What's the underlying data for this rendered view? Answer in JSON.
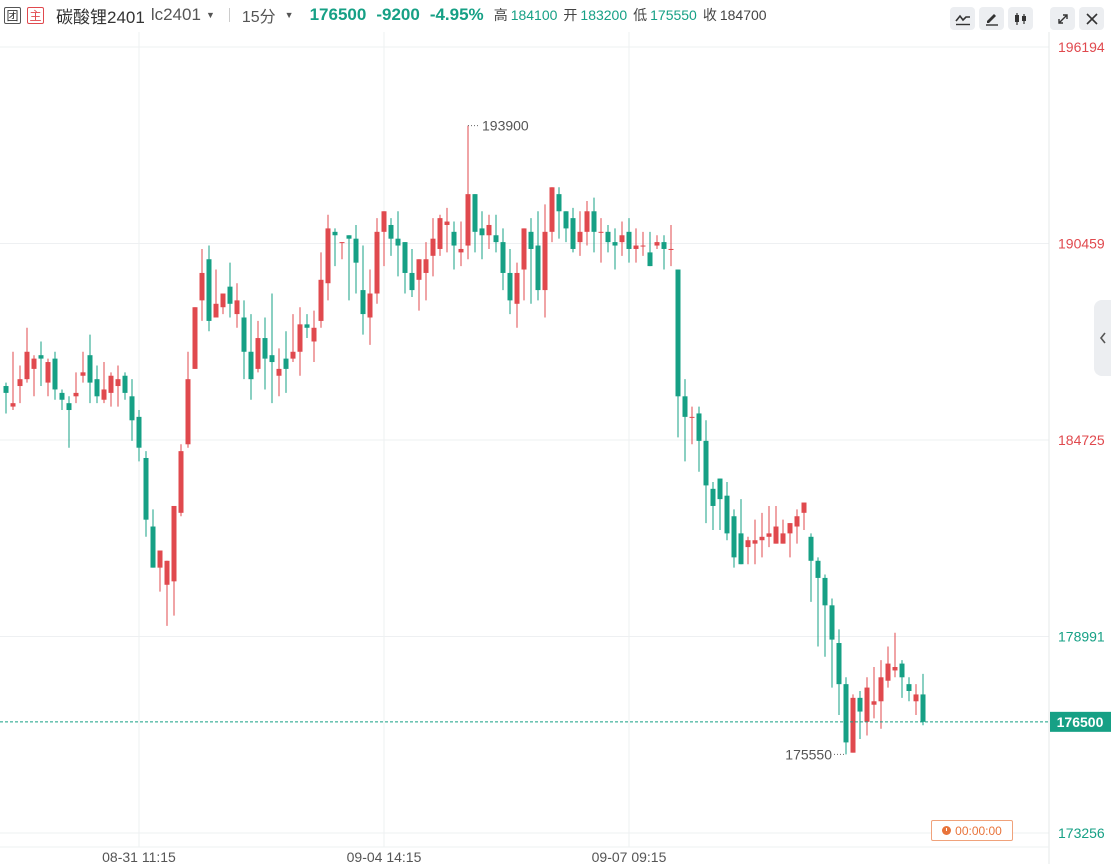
{
  "header": {
    "tag1": "团",
    "tag2": "主",
    "name": "碳酸锂2401",
    "code": "lc2401",
    "period": "15分",
    "price": "176500",
    "change": "-9200",
    "change_pct": "-4.95%",
    "high_label": "高",
    "high_value": "184100",
    "open_label": "开",
    "open_value": "183200",
    "low_label": "低",
    "low_value": "175550",
    "close_label": "收",
    "close_value": "184700"
  },
  "toolbar": {
    "icons": [
      "line-chart-icon",
      "pen-icon",
      "candlestick-icon",
      "expand-icon",
      "close-icon"
    ]
  },
  "timer": {
    "text": "00:00:00"
  },
  "colors": {
    "up": "#e0494e",
    "down": "#16a085",
    "current": "#16a085"
  },
  "chart_data": {
    "type": "candlestick",
    "y_ticks": [
      "196194",
      "190459",
      "184725",
      "178991",
      "173256"
    ],
    "y_tick_values": [
      196194,
      190459,
      184725,
      178991,
      173256
    ],
    "ylim": [
      173256,
      196194
    ],
    "x_ticks": [
      {
        "label": "08-31 11:15",
        "index": 19
      },
      {
        "label": "09-04 14:15",
        "index": 54
      },
      {
        "label": "09-07 09:15",
        "index": 89
      }
    ],
    "current_price": "176500",
    "high_annotation": "193900",
    "low_annotation": "175550",
    "candles": [
      [
        186300,
        186100,
        186400,
        185500
      ],
      [
        185700,
        185800,
        187300,
        185600
      ],
      [
        186300,
        186500,
        186900,
        185800
      ],
      [
        186500,
        187300,
        188000,
        186400
      ],
      [
        186800,
        187100,
        187200,
        186000
      ],
      [
        187200,
        187100,
        187600,
        186300
      ],
      [
        186400,
        187000,
        187100,
        186000
      ],
      [
        187100,
        186200,
        187300,
        185900
      ],
      [
        186100,
        185900,
        186200,
        185600
      ],
      [
        185800,
        185600,
        186000,
        184500
      ],
      [
        186000,
        186100,
        186700,
        185800
      ],
      [
        186600,
        186700,
        187300,
        186400
      ],
      [
        187200,
        186400,
        187800,
        185800
      ],
      [
        186500,
        186000,
        186900,
        185800
      ],
      [
        185900,
        186200,
        187000,
        185800
      ],
      [
        186100,
        186600,
        186700,
        185700
      ],
      [
        186300,
        186500,
        186900,
        185700
      ],
      [
        186600,
        186100,
        186700,
        185900
      ],
      [
        186000,
        185300,
        186500,
        184700
      ],
      [
        185400,
        184500,
        185600,
        184100
      ],
      [
        184200,
        182400,
        184400,
        181900
      ],
      [
        182200,
        181000,
        182700,
        181400
      ],
      [
        181000,
        181500,
        181400,
        180300
      ],
      [
        180500,
        181200,
        181200,
        179300
      ],
      [
        180600,
        182800,
        182700,
        179600
      ],
      [
        182600,
        184400,
        184600,
        182500
      ],
      [
        184600,
        186500,
        187300,
        184500
      ],
      [
        186800,
        188600,
        188600,
        186900
      ],
      [
        188800,
        189600,
        190300,
        188200
      ],
      [
        190000,
        188200,
        190400,
        187900
      ],
      [
        188300,
        188700,
        189700,
        188500
      ],
      [
        188600,
        189000,
        189000,
        188400
      ],
      [
        189200,
        188700,
        189900,
        188300
      ],
      [
        188400,
        188800,
        189300,
        188000
      ],
      [
        188300,
        187300,
        188800,
        186500
      ],
      [
        187300,
        186500,
        188400,
        185900
      ],
      [
        186800,
        187700,
        188200,
        186700
      ],
      [
        187700,
        187100,
        188300,
        186200
      ],
      [
        187200,
        187000,
        189000,
        185800
      ],
      [
        186600,
        186800,
        187400,
        186000
      ],
      [
        187100,
        186800,
        187900,
        186100
      ],
      [
        187100,
        187300,
        188400,
        187000
      ],
      [
        187300,
        188100,
        188600,
        186600
      ],
      [
        188100,
        188000,
        188400,
        187700
      ],
      [
        187600,
        188000,
        188500,
        187000
      ],
      [
        188200,
        189400,
        190200,
        188000
      ],
      [
        189300,
        190900,
        191300,
        188800
      ],
      [
        190800,
        190700,
        190900,
        189800
      ],
      [
        190500,
        190500,
        190300,
        190000
      ],
      [
        190700,
        190600,
        190600,
        188800
      ],
      [
        190600,
        189900,
        191000,
        189000
      ],
      [
        189100,
        188400,
        190400,
        187800
      ],
      [
        188300,
        189000,
        189700,
        187500
      ],
      [
        189000,
        190800,
        191200,
        188700
      ],
      [
        190800,
        191400,
        191400,
        189800
      ],
      [
        191000,
        190600,
        191200,
        190100
      ],
      [
        190600,
        190400,
        191400,
        189500
      ],
      [
        190500,
        189600,
        190500,
        189000
      ],
      [
        189600,
        189100,
        190300,
        188900
      ],
      [
        189400,
        190000,
        189800,
        188500
      ],
      [
        189600,
        190000,
        190500,
        188800
      ],
      [
        190100,
        190600,
        191200,
        189500
      ],
      [
        190300,
        191200,
        191300,
        190100
      ],
      [
        191000,
        191100,
        191500,
        190200
      ],
      [
        190800,
        190400,
        191100,
        189700
      ],
      [
        190200,
        190300,
        191100,
        189800
      ],
      [
        190400,
        191900,
        193900,
        190000
      ],
      [
        191900,
        190800,
        191200,
        190200
      ],
      [
        190900,
        190700,
        191400,
        190000
      ],
      [
        190700,
        191000,
        191300,
        190300
      ],
      [
        190700,
        190500,
        191300,
        190200
      ],
      [
        190500,
        189600,
        190900,
        189100
      ],
      [
        189600,
        188800,
        190300,
        188400
      ],
      [
        188700,
        189600,
        189900,
        188000
      ],
      [
        189700,
        190900,
        190700,
        188800
      ],
      [
        190800,
        190300,
        191200,
        188700
      ],
      [
        190400,
        189100,
        191400,
        188800
      ],
      [
        189100,
        190800,
        191600,
        188300
      ],
      [
        190800,
        192100,
        191800,
        190500
      ],
      [
        191900,
        191400,
        192100,
        190600
      ],
      [
        191400,
        190900,
        191300,
        190500
      ],
      [
        191200,
        190300,
        191500,
        190200
      ],
      [
        190500,
        190800,
        191400,
        190100
      ],
      [
        190800,
        191400,
        191700,
        190400
      ],
      [
        191400,
        190800,
        191800,
        190200
      ],
      [
        190800,
        190800,
        191200,
        189900
      ],
      [
        190800,
        190500,
        191000,
        190200
      ],
      [
        190500,
        190400,
        190900,
        189700
      ],
      [
        190500,
        190700,
        191100,
        190100
      ],
      [
        190800,
        190300,
        191200,
        189900
      ],
      [
        190300,
        190400,
        190900,
        189900
      ],
      [
        190400,
        190400,
        190800,
        190100
      ],
      [
        190200,
        189800,
        190800,
        189800
      ],
      [
        190400,
        190500,
        190700,
        190300
      ],
      [
        190500,
        190300,
        190700,
        189700
      ],
      [
        190300,
        190300,
        191000,
        189800
      ],
      [
        189700,
        186000,
        189700,
        184800
      ],
      [
        186000,
        185400,
        186500,
        184100
      ],
      [
        185400,
        185400,
        185700,
        184600
      ],
      [
        185500,
        184700,
        185700,
        183800
      ],
      [
        184700,
        183400,
        185300,
        182300
      ],
      [
        183300,
        182800,
        183500,
        182100
      ],
      [
        183600,
        183000,
        183600,
        182100
      ],
      [
        183100,
        182000,
        183500,
        181800
      ],
      [
        182500,
        181300,
        182700,
        181000
      ],
      [
        182000,
        181100,
        183000,
        181100
      ],
      [
        181600,
        181800,
        181900,
        181100
      ],
      [
        181700,
        181800,
        182400,
        181100
      ],
      [
        181800,
        181900,
        182600,
        181300
      ],
      [
        181900,
        182000,
        182800,
        181600
      ],
      [
        181700,
        182200,
        182800,
        181700
      ],
      [
        181700,
        182000,
        182400,
        181700
      ],
      [
        182000,
        182300,
        182100,
        181300
      ],
      [
        182200,
        182500,
        182700,
        181700
      ],
      [
        182600,
        182900,
        182800,
        182100
      ],
      [
        181900,
        181200,
        182000,
        180000
      ],
      [
        181200,
        180700,
        181300,
        178700
      ],
      [
        180700,
        179900,
        180800,
        178400
      ],
      [
        179900,
        178900,
        180100,
        177500
      ],
      [
        178800,
        177600,
        179200,
        176700
      ],
      [
        177600,
        175900,
        177800,
        175550
      ],
      [
        175600,
        177200,
        177300,
        175700
      ],
      [
        177200,
        176800,
        177400,
        176000
      ],
      [
        176500,
        177500,
        177800,
        176100
      ],
      [
        177000,
        177100,
        178100,
        176600
      ],
      [
        177100,
        177800,
        178300,
        176300
      ],
      [
        177700,
        178200,
        178700,
        177500
      ],
      [
        178000,
        178100,
        179100,
        177800
      ],
      [
        178200,
        177800,
        178300,
        177200
      ],
      [
        177600,
        177400,
        177800,
        177100
      ],
      [
        177100,
        177300,
        177600,
        176700
      ],
      [
        177300,
        176500,
        177900,
        176400
      ]
    ]
  }
}
